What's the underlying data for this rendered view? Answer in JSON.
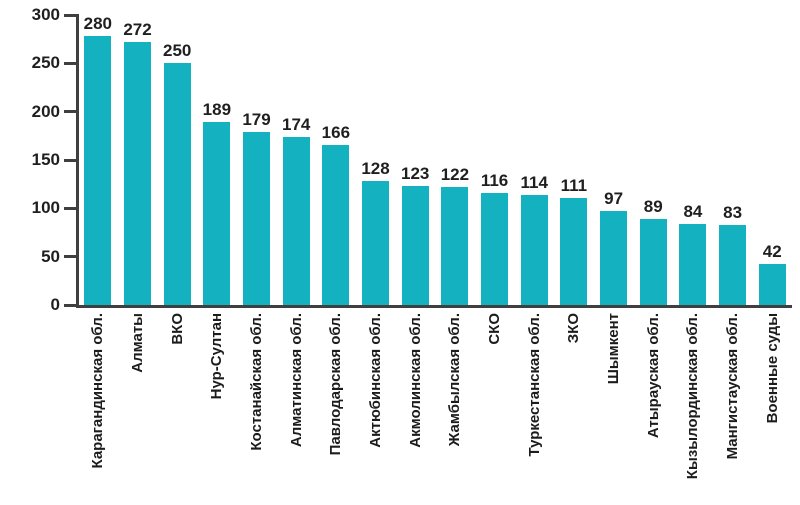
{
  "chart_data": {
    "type": "bar",
    "title": "",
    "xlabel": "",
    "ylabel": "",
    "categories": [
      "Карагандинская обл.",
      "Алматы",
      "ВКО",
      "Нур-Султан",
      "Костанайская обл.",
      "Алматинская обл.",
      "Павлодарская обл.",
      "Актюбинская обл.",
      "Акмолинская обл.",
      "Жамбылская обл.",
      "СКО",
      "Туркестанская обл.",
      "ЗКО",
      "Шымкент",
      "Атырауская обл.",
      "Кызылординская обл.",
      "Мангистауская обл.",
      "Военные суды"
    ],
    "values": [
      280,
      272,
      250,
      189,
      179,
      174,
      166,
      128,
      123,
      122,
      116,
      114,
      111,
      97,
      89,
      84,
      83,
      42
    ],
    "value_labels_shown": true,
    "ylim": [
      0,
      300
    ],
    "yticks": [
      0,
      50,
      100,
      150,
      200,
      250,
      300
    ],
    "grid": false,
    "legend": "none",
    "bar_color": "#14b1c0"
  },
  "colors": {
    "bar": "#14b1c0",
    "text": "#1f1f1f",
    "axis": "#3f3f3f",
    "background": "#ffffff"
  }
}
